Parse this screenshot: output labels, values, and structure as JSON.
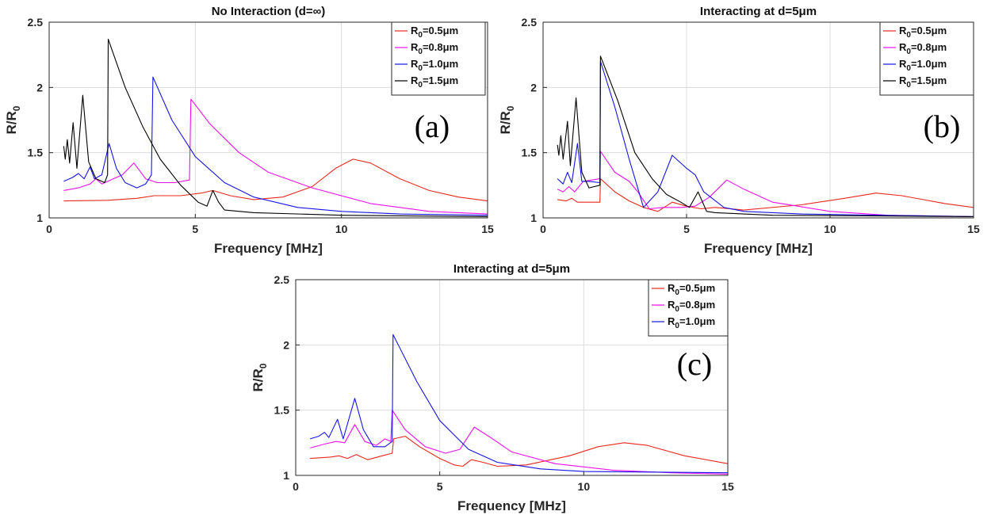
{
  "chart_data": [
    {
      "type": "line",
      "panel_label": "(a)",
      "title": "No Interaction (d=∞)",
      "xlabel": "Frequency [MHz]",
      "ylabel_main": "R/R",
      "ylabel_sub": "0",
      "xlim": [
        0,
        15
      ],
      "ylim": [
        1,
        2.5
      ],
      "xticks": [
        0,
        5,
        10,
        15
      ],
      "yticks": [
        1,
        1.5,
        2,
        2.5
      ],
      "legend_position": "top-right",
      "series": [
        {
          "name": "R₀=0.5μm",
          "legend_main": "R",
          "legend_sub": "0",
          "legend_rest": "=0.5μm",
          "color": "#e8281e",
          "points": [
            [
              0.5,
              1.13
            ],
            [
              2,
              1.135
            ],
            [
              3,
              1.15
            ],
            [
              3.6,
              1.17
            ],
            [
              4.5,
              1.17
            ],
            [
              5.2,
              1.19
            ],
            [
              5.6,
              1.21
            ],
            [
              6.2,
              1.17
            ],
            [
              7,
              1.14
            ],
            [
              8,
              1.16
            ],
            [
              9,
              1.24
            ],
            [
              9.8,
              1.38
            ],
            [
              10.4,
              1.45
            ],
            [
              11,
              1.42
            ],
            [
              12,
              1.3
            ],
            [
              13,
              1.21
            ],
            [
              14,
              1.16
            ],
            [
              15,
              1.13
            ]
          ]
        },
        {
          "name": "R₀=0.8μm",
          "legend_main": "R",
          "legend_sub": "0",
          "legend_rest": "=0.8μm",
          "color": "#ee10ee",
          "points": [
            [
              0.5,
              1.21
            ],
            [
              1,
              1.23
            ],
            [
              1.4,
              1.26
            ],
            [
              1.6,
              1.3
            ],
            [
              1.8,
              1.26
            ],
            [
              2.2,
              1.3
            ],
            [
              2.5,
              1.33
            ],
            [
              2.9,
              1.42
            ],
            [
              3.3,
              1.3
            ],
            [
              3.7,
              1.27
            ],
            [
              4.3,
              1.27
            ],
            [
              4.8,
              1.29
            ],
            [
              4.85,
              1.91
            ],
            [
              5.5,
              1.72
            ],
            [
              6.5,
              1.5
            ],
            [
              7.5,
              1.35
            ],
            [
              9,
              1.23
            ],
            [
              11,
              1.11
            ],
            [
              13,
              1.05
            ],
            [
              15,
              1.03
            ]
          ]
        },
        {
          "name": "R₀=1.0μm",
          "legend_main": "R",
          "legend_sub": "0",
          "legend_rest": "=1.0μm",
          "color": "#1414e6",
          "points": [
            [
              0.5,
              1.28
            ],
            [
              0.8,
              1.31
            ],
            [
              1.0,
              1.34
            ],
            [
              1.2,
              1.3
            ],
            [
              1.4,
              1.39
            ],
            [
              1.55,
              1.3
            ],
            [
              1.8,
              1.33
            ],
            [
              2.05,
              1.57
            ],
            [
              2.3,
              1.38
            ],
            [
              2.6,
              1.27
            ],
            [
              3.0,
              1.23
            ],
            [
              3.3,
              1.26
            ],
            [
              3.5,
              1.33
            ],
            [
              3.55,
              2.08
            ],
            [
              4.2,
              1.75
            ],
            [
              5,
              1.47
            ],
            [
              6,
              1.27
            ],
            [
              7,
              1.16
            ],
            [
              8.5,
              1.08
            ],
            [
              10,
              1.05
            ],
            [
              12,
              1.03
            ],
            [
              15,
              1.02
            ]
          ]
        },
        {
          "name": "R₀=1.5μm",
          "legend_main": "R",
          "legend_sub": "0",
          "legend_rest": "=1.5μm",
          "color": "#000000",
          "points": [
            [
              0.5,
              1.55
            ],
            [
              0.55,
              1.45
            ],
            [
              0.62,
              1.6
            ],
            [
              0.7,
              1.42
            ],
            [
              0.82,
              1.73
            ],
            [
              0.95,
              1.38
            ],
            [
              1.15,
              1.94
            ],
            [
              1.35,
              1.43
            ],
            [
              1.6,
              1.3
            ],
            [
              1.9,
              1.27
            ],
            [
              2.0,
              1.33
            ],
            [
              2.02,
              2.37
            ],
            [
              2.6,
              2.0
            ],
            [
              3.2,
              1.7
            ],
            [
              3.8,
              1.45
            ],
            [
              4.5,
              1.25
            ],
            [
              5.1,
              1.12
            ],
            [
              5.4,
              1.09
            ],
            [
              5.6,
              1.21
            ],
            [
              5.8,
              1.12
            ],
            [
              6.0,
              1.06
            ],
            [
              7,
              1.04
            ],
            [
              10,
              1.02
            ],
            [
              15,
              1.01
            ]
          ]
        }
      ]
    },
    {
      "type": "line",
      "panel_label": "(b)",
      "title": "Interacting at d=5μm",
      "xlabel": "Frequency [MHz]",
      "ylabel_main": "R/R",
      "ylabel_sub": "0",
      "xlim": [
        0,
        15
      ],
      "ylim": [
        1,
        2.5
      ],
      "xticks": [
        0,
        5,
        10,
        15
      ],
      "yticks": [
        1,
        1.5,
        2,
        2.5
      ],
      "legend_position": "top-right",
      "series": [
        {
          "name": "R₀=0.5μm",
          "legend_main": "R",
          "legend_sub": "0",
          "legend_rest": "=0.5μm",
          "color": "#e8281e",
          "points": [
            [
              0.5,
              1.14
            ],
            [
              0.8,
              1.13
            ],
            [
              1.0,
              1.15
            ],
            [
              1.2,
              1.12
            ],
            [
              1.6,
              1.12
            ],
            [
              1.98,
              1.12
            ],
            [
              2.0,
              1.3
            ],
            [
              2.5,
              1.2
            ],
            [
              3,
              1.13
            ],
            [
              3.5,
              1.08
            ],
            [
              4,
              1.05
            ],
            [
              4.5,
              1.12
            ],
            [
              5,
              1.09
            ],
            [
              5.5,
              1.07
            ],
            [
              6,
              1.08
            ],
            [
              7,
              1.06
            ],
            [
              9,
              1.1
            ],
            [
              10.5,
              1.15
            ],
            [
              11.6,
              1.19
            ],
            [
              12.5,
              1.17
            ],
            [
              14,
              1.11
            ],
            [
              15,
              1.08
            ]
          ]
        },
        {
          "name": "R₀=0.8μm",
          "legend_main": "R",
          "legend_sub": "0",
          "legend_rest": "=0.8μm",
          "color": "#ee10ee",
          "points": [
            [
              0.5,
              1.22
            ],
            [
              0.7,
              1.2
            ],
            [
              0.9,
              1.24
            ],
            [
              1.1,
              1.2
            ],
            [
              1.4,
              1.28
            ],
            [
              1.98,
              1.3
            ],
            [
              2.0,
              1.51
            ],
            [
              2.5,
              1.35
            ],
            [
              3.0,
              1.28
            ],
            [
              3.3,
              1.2
            ],
            [
              3.7,
              1.07
            ],
            [
              4.2,
              1.08
            ],
            [
              4.8,
              1.08
            ],
            [
              5.3,
              1.09
            ],
            [
              5.8,
              1.16
            ],
            [
              6.4,
              1.29
            ],
            [
              7,
              1.22
            ],
            [
              8,
              1.12
            ],
            [
              10,
              1.05
            ],
            [
              12,
              1.02
            ],
            [
              15,
              1.01
            ]
          ]
        },
        {
          "name": "R₀=1.0μm",
          "legend_main": "R",
          "legend_sub": "0",
          "legend_rest": "=1.0μm",
          "color": "#1414e6",
          "points": [
            [
              0.5,
              1.3
            ],
            [
              0.7,
              1.26
            ],
            [
              0.85,
              1.35
            ],
            [
              1.0,
              1.27
            ],
            [
              1.2,
              1.57
            ],
            [
              1.35,
              1.28
            ],
            [
              1.6,
              1.28
            ],
            [
              1.98,
              1.27
            ],
            [
              2.0,
              2.2
            ],
            [
              2.5,
              1.85
            ],
            [
              3.0,
              1.45
            ],
            [
              3.5,
              1.08
            ],
            [
              4.0,
              1.2
            ],
            [
              4.5,
              1.48
            ],
            [
              5.0,
              1.38
            ],
            [
              5.3,
              1.33
            ],
            [
              5.6,
              1.2
            ],
            [
              6.3,
              1.08
            ],
            [
              7,
              1.05
            ],
            [
              9,
              1.03
            ],
            [
              15,
              1.01
            ]
          ]
        },
        {
          "name": "R₀=1.5μm",
          "legend_main": "R",
          "legend_sub": "0",
          "legend_rest": "=1.5μm",
          "color": "#000000",
          "points": [
            [
              0.5,
              1.56
            ],
            [
              0.55,
              1.48
            ],
            [
              0.62,
              1.63
            ],
            [
              0.7,
              1.45
            ],
            [
              0.85,
              1.74
            ],
            [
              0.95,
              1.4
            ],
            [
              1.15,
              1.92
            ],
            [
              1.35,
              1.35
            ],
            [
              1.6,
              1.23
            ],
            [
              1.98,
              1.25
            ],
            [
              2.0,
              2.24
            ],
            [
              2.6,
              1.9
            ],
            [
              3.2,
              1.5
            ],
            [
              3.8,
              1.3
            ],
            [
              4.3,
              1.18
            ],
            [
              4.8,
              1.12
            ],
            [
              5.1,
              1.08
            ],
            [
              5.4,
              1.2
            ],
            [
              5.7,
              1.05
            ],
            [
              6,
              1.04
            ],
            [
              8,
              1.02
            ],
            [
              15,
              1.01
            ]
          ]
        }
      ]
    },
    {
      "type": "line",
      "panel_label": "(c)",
      "title": "Interacting at d=5μm",
      "xlabel": "Frequency [MHz]",
      "ylabel_main": "R/R",
      "ylabel_sub": "0",
      "xlim": [
        0,
        15
      ],
      "ylim": [
        1,
        2.5
      ],
      "xticks": [
        0,
        5,
        10,
        15
      ],
      "yticks": [
        1,
        1.5,
        2,
        2.5
      ],
      "legend_position": "top-right",
      "series": [
        {
          "name": "R₀=0.5μm",
          "legend_main": "R",
          "legend_sub": "0",
          "legend_rest": "=0.5μm",
          "color": "#e8281e",
          "points": [
            [
              0.5,
              1.13
            ],
            [
              1.2,
              1.14
            ],
            [
              1.5,
              1.15
            ],
            [
              1.8,
              1.13
            ],
            [
              2.1,
              1.16
            ],
            [
              2.5,
              1.12
            ],
            [
              3.0,
              1.15
            ],
            [
              3.35,
              1.17
            ],
            [
              3.4,
              1.28
            ],
            [
              3.8,
              1.3
            ],
            [
              4.3,
              1.22
            ],
            [
              5.0,
              1.13
            ],
            [
              5.5,
              1.08
            ],
            [
              5.8,
              1.07
            ],
            [
              6.1,
              1.12
            ],
            [
              6.5,
              1.1
            ],
            [
              7,
              1.07
            ],
            [
              8,
              1.08
            ],
            [
              9.5,
              1.15
            ],
            [
              10.5,
              1.22
            ],
            [
              11.4,
              1.25
            ],
            [
              12.2,
              1.23
            ],
            [
              13.5,
              1.15
            ],
            [
              15,
              1.09
            ]
          ]
        },
        {
          "name": "R₀=0.8μm",
          "legend_main": "R",
          "legend_sub": "0",
          "legend_rest": "=0.8μm",
          "color": "#ee10ee",
          "points": [
            [
              0.5,
              1.21
            ],
            [
              1.0,
              1.24
            ],
            [
              1.4,
              1.26
            ],
            [
              1.7,
              1.25
            ],
            [
              2.05,
              1.39
            ],
            [
              2.4,
              1.26
            ],
            [
              2.8,
              1.23
            ],
            [
              3.1,
              1.28
            ],
            [
              3.3,
              1.26
            ],
            [
              3.35,
              1.5
            ],
            [
              3.8,
              1.35
            ],
            [
              4.5,
              1.22
            ],
            [
              5.2,
              1.17
            ],
            [
              5.7,
              1.2
            ],
            [
              6.2,
              1.37
            ],
            [
              6.7,
              1.3
            ],
            [
              7.5,
              1.18
            ],
            [
              9,
              1.09
            ],
            [
              11,
              1.04
            ],
            [
              13,
              1.02
            ],
            [
              15,
              1.01
            ]
          ]
        },
        {
          "name": "R₀=1.0μm",
          "legend_main": "R",
          "legend_sub": "0",
          "legend_rest": "=1.0μm",
          "color": "#1414e6",
          "points": [
            [
              0.5,
              1.28
            ],
            [
              0.8,
              1.3
            ],
            [
              1.0,
              1.33
            ],
            [
              1.15,
              1.29
            ],
            [
              1.45,
              1.43
            ],
            [
              1.65,
              1.28
            ],
            [
              2.05,
              1.59
            ],
            [
              2.35,
              1.35
            ],
            [
              2.7,
              1.22
            ],
            [
              3.1,
              1.22
            ],
            [
              3.35,
              1.26
            ],
            [
              3.38,
              2.08
            ],
            [
              4.2,
              1.72
            ],
            [
              5,
              1.42
            ],
            [
              6,
              1.2
            ],
            [
              7,
              1.1
            ],
            [
              8.5,
              1.05
            ],
            [
              10,
              1.03
            ],
            [
              15,
              1.02
            ]
          ]
        }
      ]
    }
  ]
}
